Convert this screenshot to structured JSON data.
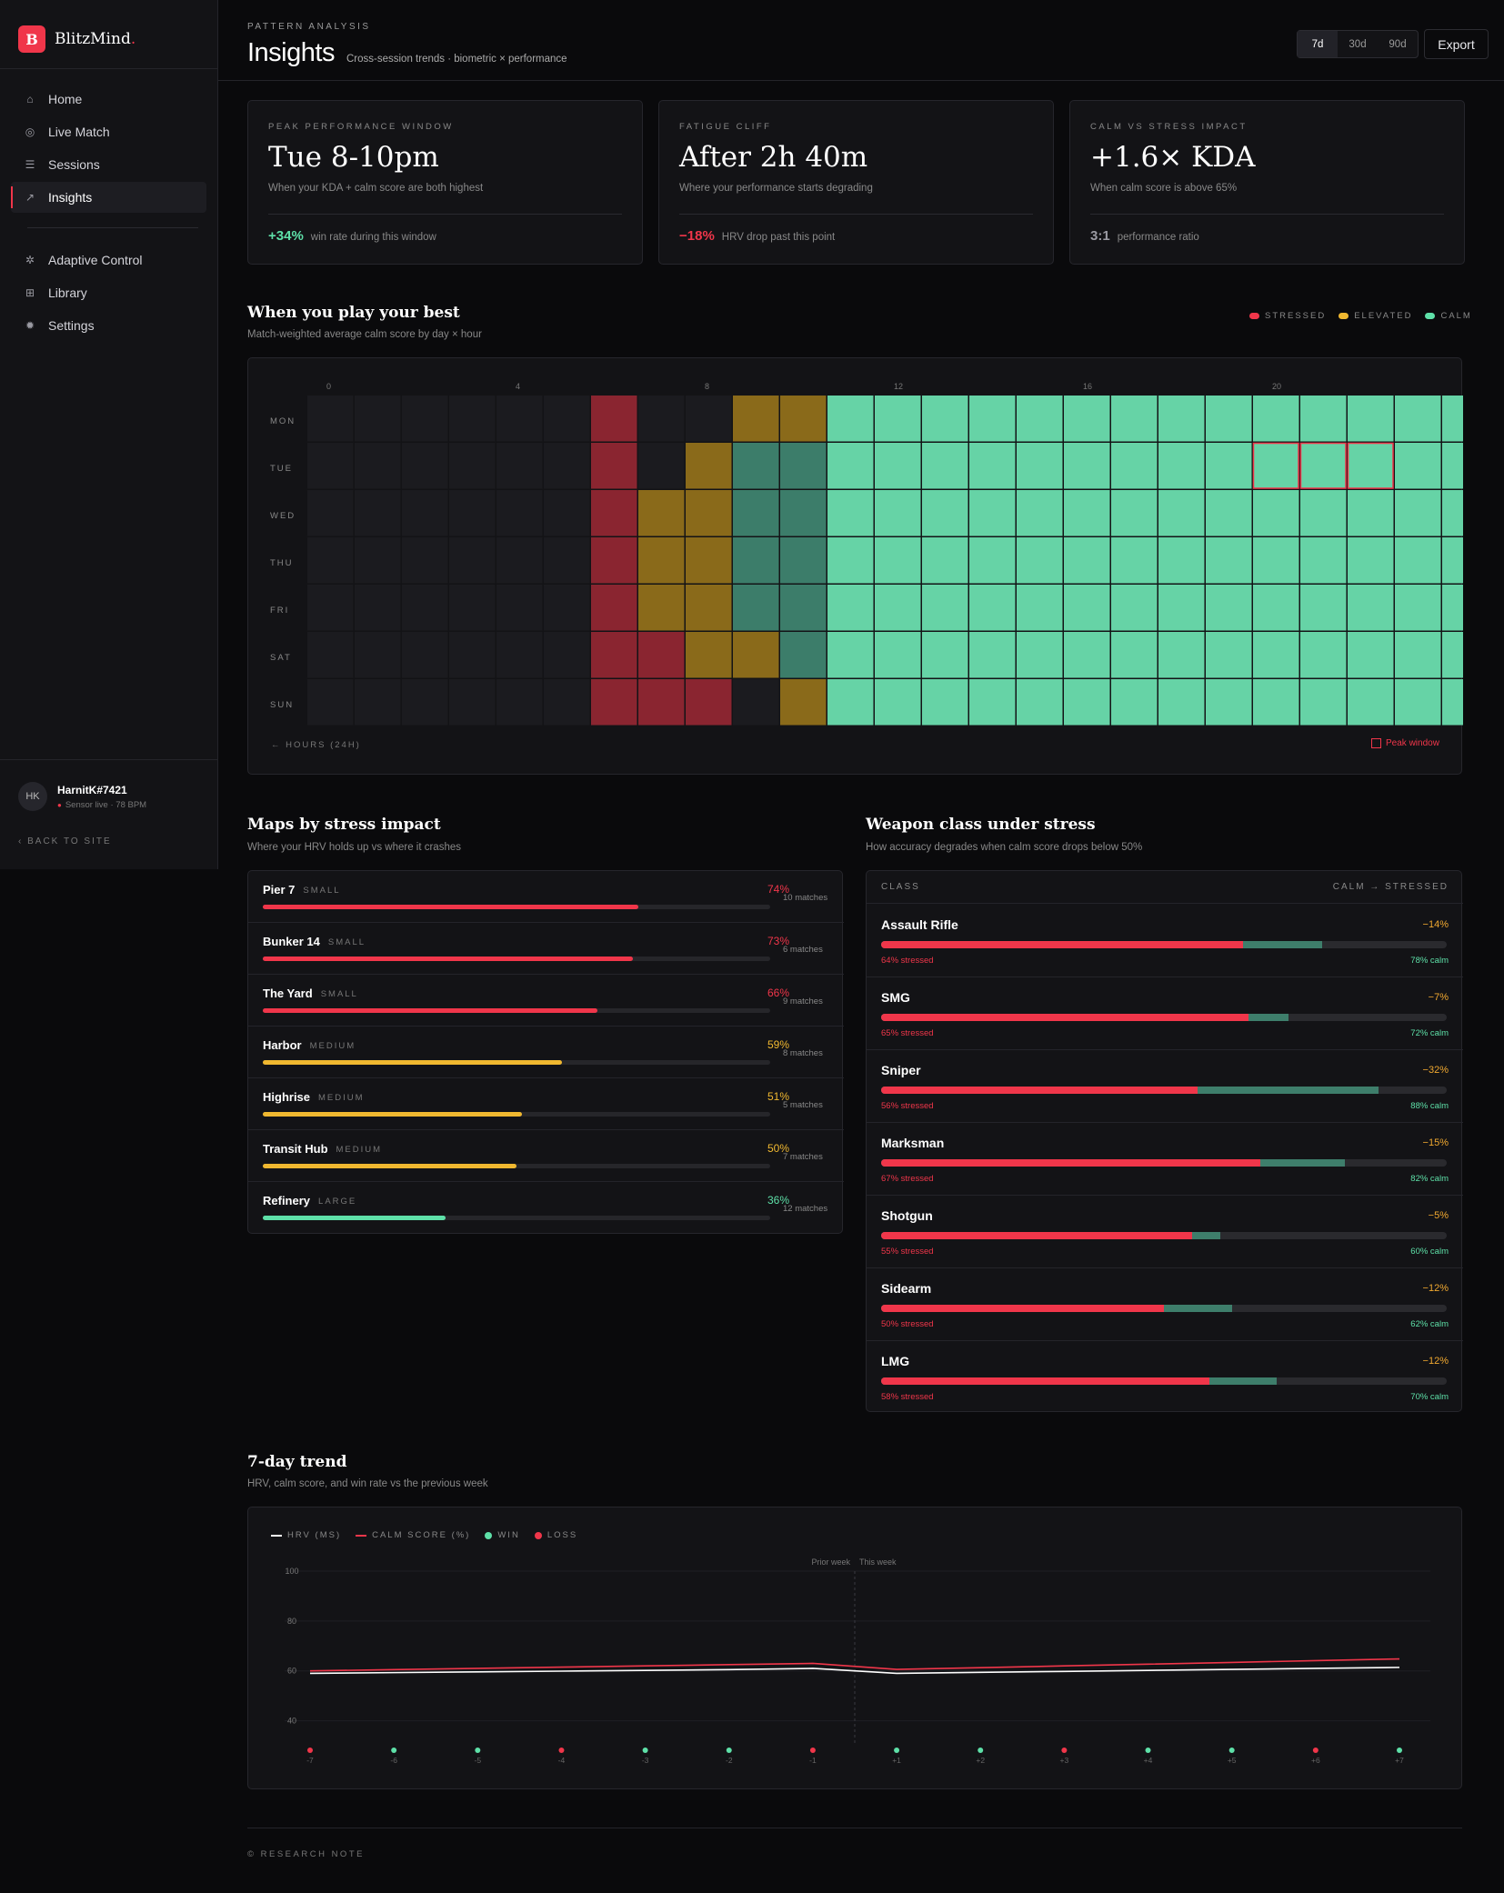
{
  "app": {
    "logo_letter": "B",
    "name": "BlitzMind"
  },
  "sidebar": {
    "nav": [
      {
        "label": "Home",
        "icon": "home-icon",
        "glyph": "⌂",
        "active": false
      },
      {
        "label": "Live Match",
        "icon": "live-icon",
        "glyph": "◎",
        "active": false
      },
      {
        "label": "Sessions",
        "icon": "list-icon",
        "glyph": "☰",
        "active": false
      },
      {
        "label": "Insights",
        "icon": "trend-icon",
        "glyph": "↗",
        "active": true
      }
    ],
    "nav2": [
      {
        "label": "Adaptive Control",
        "icon": "adaptive-icon",
        "glyph": "✲"
      },
      {
        "label": "Library",
        "icon": "grid-icon",
        "glyph": "⊞"
      },
      {
        "label": "Settings",
        "icon": "gear-icon",
        "glyph": "✹"
      }
    ],
    "user": {
      "initials": "HK",
      "name": "HarnitK#7421",
      "status": "Sensor live · 78 BPM"
    },
    "back": "BACK TO SITE"
  },
  "header": {
    "eyebrow": "PATTERN ANALYSIS",
    "title": "Insights",
    "subtitle": "Cross-session trends · biometric × performance",
    "ranges": [
      "7d",
      "30d",
      "90d"
    ],
    "active_range": "7d",
    "export": "Export"
  },
  "cards": [
    {
      "label": "PEAK PERFORMANCE WINDOW",
      "value": "Tue 8-10pm",
      "desc": "When your KDA + calm score are both highest",
      "foot_value": "+34%",
      "foot_color": "#5ee0a8",
      "foot_text": "win rate during this window"
    },
    {
      "label": "FATIGUE CLIFF",
      "value": "After 2h 40m",
      "desc": "Where your performance starts degrading",
      "foot_value": "−18%",
      "foot_color": "#f0364a",
      "foot_text": "HRV drop past this point"
    },
    {
      "label": "CALM VS STRESS IMPACT",
      "value": "+1.6× KDA",
      "desc": "When calm score is above 65%",
      "foot_value": "3:1",
      "foot_color": "#9a9aa2",
      "foot_text": "performance ratio"
    }
  ],
  "heatmap": {
    "title": "When you play your best",
    "subtitle": "Match-weighted average calm score by day × hour",
    "legend": [
      {
        "label": "STRESSED",
        "color": "#f0364a"
      },
      {
        "label": "ELEVATED",
        "color": "#f0b830"
      },
      {
        "label": "CALM",
        "color": "#5ee0a8"
      }
    ],
    "days": [
      "MON",
      "TUE",
      "WED",
      "THU",
      "FRI",
      "SAT",
      "SUN"
    ],
    "hour_ticks": [
      "0",
      "4",
      "8",
      "12",
      "16",
      "20"
    ],
    "colors": {
      "empty": "#1b1b1f",
      "stressed": "#8a2530",
      "elevated": "#8a6a1a",
      "calm_dim": "#3c7d6a",
      "calm": "#66d3a6",
      "peak": "#f0364a"
    },
    "cells": [
      "eeeeeesee44cccccccccccccc",
      "eeeeeese4mmcccccccccccccc",
      "eeeeees44mmcccccccccccccc",
      "eeeeees44mmcccccccccccccc",
      "eeeeees44mmcccccccccccccc",
      "eeeeeess44mcccccccccccccc",
      "eeeeeessse4cccccccccccccc"
    ],
    "peak": {
      "day": 1,
      "hours": [
        20,
        21,
        22
      ]
    },
    "axis_label": "← HOURS (24H)",
    "peak_label": "Peak window"
  },
  "maps": {
    "title": "Maps by stress impact",
    "subtitle": "Where your HRV holds up vs where it crashes",
    "rows": [
      {
        "name": "Pier 7",
        "size": "SMALL",
        "pct": "74%",
        "value": 0.74,
        "color": "#f0364a",
        "count": "10 matches"
      },
      {
        "name": "Bunker 14",
        "size": "SMALL",
        "pct": "73%",
        "value": 0.73,
        "color": "#f0364a",
        "count": "6 matches"
      },
      {
        "name": "The Yard",
        "size": "SMALL",
        "pct": "66%",
        "value": 0.66,
        "color": "#f0364a",
        "count": "9 matches"
      },
      {
        "name": "Harbor",
        "size": "MEDIUM",
        "pct": "59%",
        "value": 0.59,
        "color": "#f0b830",
        "count": "8 matches"
      },
      {
        "name": "Highrise",
        "size": "MEDIUM",
        "pct": "51%",
        "value": 0.51,
        "color": "#f0b830",
        "count": "5 matches"
      },
      {
        "name": "Transit Hub",
        "size": "MEDIUM",
        "pct": "50%",
        "value": 0.5,
        "color": "#f0b830",
        "count": "7 matches"
      },
      {
        "name": "Refinery",
        "size": "LARGE",
        "pct": "36%",
        "value": 0.36,
        "color": "#5ee0a8",
        "count": "12 matches"
      }
    ]
  },
  "weapons": {
    "title": "Weapon class under stress",
    "subtitle": "How accuracy degrades when calm score drops below 50%",
    "col_left": "CLASS",
    "col_right": "CALM → STRESSED",
    "rows": [
      {
        "name": "Assault Rifle",
        "delta": "−14%",
        "stressed": 0.64,
        "calm": 0.78,
        "stressed_label": "64% stressed",
        "calm_label": "78% calm"
      },
      {
        "name": "SMG",
        "delta": "−7%",
        "stressed": 0.65,
        "calm": 0.72,
        "stressed_label": "65% stressed",
        "calm_label": "72% calm"
      },
      {
        "name": "Sniper",
        "delta": "−32%",
        "stressed": 0.56,
        "calm": 0.88,
        "stressed_label": "56% stressed",
        "calm_label": "88% calm"
      },
      {
        "name": "Marksman",
        "delta": "−15%",
        "stressed": 0.67,
        "calm": 0.82,
        "stressed_label": "67% stressed",
        "calm_label": "82% calm"
      },
      {
        "name": "Shotgun",
        "delta": "−5%",
        "stressed": 0.55,
        "calm": 0.6,
        "stressed_label": "55% stressed",
        "calm_label": "60% calm"
      },
      {
        "name": "Sidearm",
        "delta": "−12%",
        "stressed": 0.5,
        "calm": 0.62,
        "stressed_label": "50% stressed",
        "calm_label": "62% calm"
      },
      {
        "name": "LMG",
        "delta": "−12%",
        "stressed": 0.58,
        "calm": 0.7,
        "stressed_label": "58% stressed",
        "calm_label": "70% calm"
      }
    ]
  },
  "trend": {
    "title": "7-day trend",
    "subtitle": "HRV, calm score, and win rate vs the previous week",
    "legend": [
      {
        "label": "HRV (MS)",
        "type": "line",
        "color": "#ffffff"
      },
      {
        "label": "CALM SCORE (%)",
        "type": "line",
        "color": "#f0364a"
      },
      {
        "label": "WIN",
        "type": "dot",
        "color": "#5ee0a8"
      },
      {
        "label": "LOSS",
        "type": "dot",
        "color": "#f0364a"
      }
    ],
    "prior_label": "Prior week",
    "this_label": "This week"
  },
  "chart_data": {
    "type": "line",
    "title": "7-day trend",
    "x": [
      "-7",
      "-6",
      "-5",
      "-4",
      "-3",
      "-2",
      "-1",
      "+1",
      "+2",
      "+3",
      "+4",
      "+5",
      "+6",
      "+7"
    ],
    "yticks": [
      "100",
      "80",
      "60",
      "40"
    ],
    "ylim": [
      30,
      100
    ],
    "divider_after_index": 6,
    "series": [
      {
        "name": "HRV (MS)",
        "color": "#ffffff",
        "values": [
          59,
          59.3,
          59.6,
          59.9,
          60.2,
          60.5,
          61,
          59,
          59.4,
          59.8,
          60.2,
          60.6,
          61,
          61.4
        ]
      },
      {
        "name": "CALM SCORE (%)",
        "color": "#f0364a",
        "values": [
          60,
          60.5,
          61,
          61.5,
          62,
          62.5,
          63,
          60.6,
          61.3,
          62,
          62.7,
          63.4,
          64.1,
          64.8
        ]
      }
    ],
    "outcomes": [
      "loss",
      "win",
      "win",
      "loss",
      "win",
      "win",
      "loss",
      "win",
      "win",
      "loss",
      "win",
      "win",
      "loss",
      "win"
    ],
    "grid": true,
    "legend": "top-left"
  },
  "research_note": "RESEARCH NOTE"
}
